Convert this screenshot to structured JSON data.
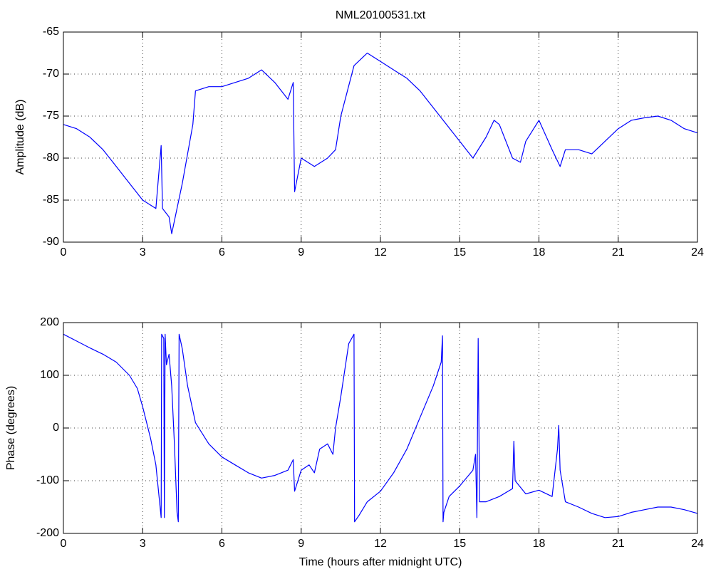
{
  "chart_data": [
    {
      "type": "line",
      "title": "NML20100531.txt",
      "ylabel": "Amplitude (dB)",
      "x": [
        0,
        0.5,
        1,
        1.5,
        2,
        2.5,
        3,
        3.5,
        3.7,
        3.75,
        4,
        4.1,
        4.5,
        4.9,
        5,
        5.5,
        6,
        6.5,
        7,
        7.5,
        8,
        8.5,
        8.7,
        8.75,
        9,
        9.5,
        10,
        10.3,
        10.5,
        11,
        11.5,
        12,
        12.5,
        13,
        13.5,
        14,
        14.5,
        15,
        15.5,
        16,
        16.3,
        16.5,
        17,
        17.3,
        17.5,
        18,
        18.5,
        18.8,
        19,
        19.5,
        20,
        20.5,
        21,
        21.5,
        22,
        22.5,
        23,
        23.5,
        24
      ],
      "values": [
        -76,
        -76.5,
        -77.5,
        -79,
        -81,
        -83,
        -85,
        -86,
        -78.5,
        -86,
        -87,
        -89,
        -83,
        -76,
        -72,
        -71.5,
        -71.5,
        -71,
        -70.5,
        -69.5,
        -71,
        -73,
        -71,
        -84,
        -80,
        -81,
        -80,
        -79,
        -75,
        -69,
        -67.5,
        -68.5,
        -69.5,
        -70.5,
        -72,
        -74,
        -76,
        -78,
        -80,
        -77.5,
        -75.5,
        -76,
        -80,
        -80.5,
        -78,
        -75.5,
        -79,
        -81,
        -79,
        -79,
        -79.5,
        -78,
        -76.5,
        -75.5,
        -75.2,
        -75,
        -75.5,
        -76.5,
        -77
      ],
      "color": "#0000ff",
      "xlim": [
        0,
        24
      ],
      "xticks": [
        0,
        3,
        6,
        9,
        12,
        15,
        18,
        21,
        24
      ],
      "ylim": [
        -90,
        -65
      ],
      "yticks": [
        -90,
        -85,
        -80,
        -75,
        -70,
        -65
      ],
      "grid": true
    },
    {
      "type": "line",
      "xlabel": "Time (hours after midnight UTC)",
      "ylabel": "Phase (degrees)",
      "x": [
        0,
        0.5,
        1,
        1.5,
        2,
        2.5,
        2.8,
        3,
        3.3,
        3.5,
        3.7,
        3.72,
        3.8,
        3.82,
        3.85,
        3.9,
        4,
        4.1,
        4.2,
        4.3,
        4.35,
        4.38,
        4.5,
        4.7,
        5,
        5.5,
        6,
        6.5,
        7,
        7.5,
        8,
        8.5,
        8.7,
        8.75,
        9,
        9.3,
        9.5,
        9.7,
        10,
        10.2,
        10.3,
        10.5,
        10.8,
        11,
        11.02,
        11.2,
        11.5,
        12,
        12.5,
        13,
        13.5,
        14,
        14.3,
        14.35,
        14.37,
        14.4,
        14.6,
        15,
        15.5,
        15.6,
        15.65,
        15.7,
        15.75,
        16,
        16.5,
        17,
        17.05,
        17.1,
        17.5,
        18,
        18.5,
        18.7,
        18.75,
        18.8,
        19,
        19.5,
        20,
        20.5,
        21,
        21.5,
        22,
        22.5,
        23,
        23.5,
        24
      ],
      "values": [
        178,
        165,
        152,
        140,
        125,
        100,
        75,
        40,
        -20,
        -70,
        -170,
        178,
        170,
        -170,
        178,
        120,
        140,
        80,
        -30,
        -160,
        -178,
        178,
        150,
        80,
        10,
        -30,
        -55,
        -70,
        -85,
        -95,
        -90,
        -80,
        -60,
        -120,
        -80,
        -70,
        -85,
        -40,
        -30,
        -50,
        0,
        60,
        160,
        178,
        -178,
        -165,
        -140,
        -120,
        -85,
        -40,
        20,
        80,
        125,
        175,
        -178,
        -160,
        -130,
        -110,
        -80,
        -50,
        -170,
        170,
        -140,
        -140,
        -130,
        -115,
        -25,
        -100,
        -125,
        -118,
        -130,
        -40,
        5,
        -80,
        -140,
        -150,
        -162,
        -170,
        -168,
        -160,
        -155,
        -150,
        -150,
        -155,
        -162
      ],
      "color": "#0000ff",
      "xlim": [
        0,
        24
      ],
      "xticks": [
        0,
        3,
        6,
        9,
        12,
        15,
        18,
        21,
        24
      ],
      "ylim": [
        -200,
        200
      ],
      "yticks": [
        -200,
        -100,
        0,
        100,
        200
      ],
      "grid": true
    }
  ]
}
